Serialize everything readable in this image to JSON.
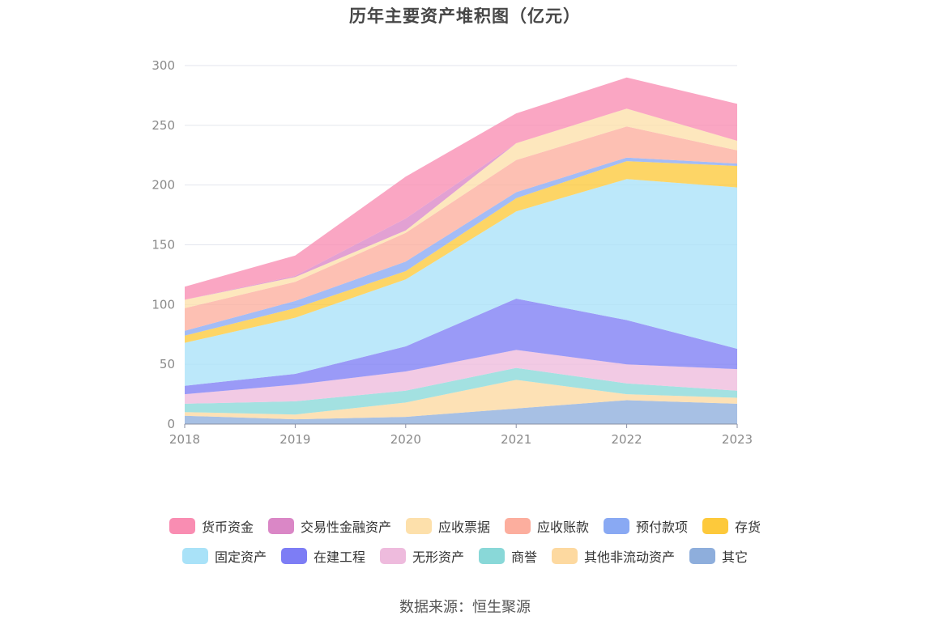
{
  "title": "历年主要资产堆积图（亿元）",
  "source": "数据来源：恒生聚源",
  "chart_data": {
    "type": "area",
    "stacked": true,
    "title": "历年主要资产堆积图（亿元）",
    "xlabel": "",
    "ylabel": "",
    "x": [
      "2018",
      "2019",
      "2020",
      "2021",
      "2022",
      "2023"
    ],
    "ylim": [
      0,
      300
    ],
    "yticks": [
      "0",
      "50",
      "100",
      "150",
      "200",
      "250",
      "300"
    ],
    "grid": true,
    "legend_position": "bottom",
    "series": [
      {
        "name": "其它",
        "color": "#8eaedc",
        "values": [
          7,
          4,
          6,
          13,
          20,
          17
        ]
      },
      {
        "name": "其他非流动资产",
        "color": "#fdd9a0",
        "values": [
          3,
          4,
          12,
          24,
          5,
          5
        ]
      },
      {
        "name": "商誉",
        "color": "#89d8d8",
        "values": [
          7,
          11,
          10,
          10,
          9,
          6
        ]
      },
      {
        "name": "无形资产",
        "color": "#eebbdd",
        "values": [
          8,
          14,
          16,
          15,
          16,
          18
        ]
      },
      {
        "name": "在建工程",
        "color": "#7d7df5",
        "values": [
          7,
          9,
          21,
          43,
          37,
          17
        ]
      },
      {
        "name": "固定资产",
        "color": "#a9e2f8",
        "values": [
          36,
          47,
          56,
          73,
          118,
          135
        ]
      },
      {
        "name": "存货",
        "color": "#fdc93b",
        "values": [
          6,
          8,
          7,
          11,
          15,
          18
        ]
      },
      {
        "name": "预付款项",
        "color": "#89a9f3",
        "values": [
          4,
          6,
          8,
          5,
          3,
          2
        ]
      },
      {
        "name": "应收账款",
        "color": "#fcae9e",
        "values": [
          19,
          16,
          24,
          27,
          26,
          11
        ]
      },
      {
        "name": "应收票据",
        "color": "#fde0ab",
        "values": [
          7,
          4,
          2,
          14,
          15,
          8
        ]
      },
      {
        "name": "交易性金融资产",
        "color": "#da87c6",
        "values": [
          0,
          1,
          10,
          0,
          0,
          0
        ]
      },
      {
        "name": "货币资金",
        "color": "#f98db2",
        "values": [
          11,
          17,
          35,
          25,
          26,
          31
        ]
      }
    ]
  },
  "legend": {
    "row1": [
      {
        "label": "货币资金",
        "color": "#f98db2"
      },
      {
        "label": "交易性金融资产",
        "color": "#da87c6"
      },
      {
        "label": "应收票据",
        "color": "#fde0ab"
      },
      {
        "label": "应收账款",
        "color": "#fcae9e"
      },
      {
        "label": "预付款项",
        "color": "#89a9f3"
      },
      {
        "label": "存货",
        "color": "#fdc93b"
      }
    ],
    "row2": [
      {
        "label": "固定资产",
        "color": "#a9e2f8"
      },
      {
        "label": "在建工程",
        "color": "#7d7df5"
      },
      {
        "label": "无形资产",
        "color": "#eebbdd"
      },
      {
        "label": "商誉",
        "color": "#89d8d8"
      },
      {
        "label": "其他非流动资产",
        "color": "#fdd9a0"
      },
      {
        "label": "其它",
        "color": "#8eaedc"
      }
    ]
  }
}
